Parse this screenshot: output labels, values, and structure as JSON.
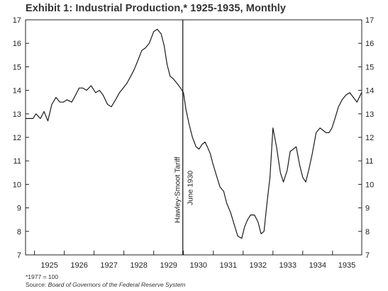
{
  "chart_data": {
    "type": "line",
    "title": "Exhibit 1: Industrial Production,* 1925-1935, Monthly",
    "xlabel": "",
    "ylabel": "",
    "ylim": [
      7,
      17
    ],
    "xlim": [
      1924.7,
      1935.98
    ],
    "yticks": [
      7,
      8,
      9,
      10,
      11,
      12,
      13,
      14,
      15,
      16,
      17
    ],
    "xtick_labels": [
      "1925",
      "1926",
      "1927",
      "1928",
      "1929",
      "1930",
      "1931",
      "1932",
      "1933",
      "1934",
      "1935"
    ],
    "grid": false,
    "annotation": {
      "x": 1930.0,
      "line1": "Hawley-Smoot Tariff",
      "line2": "June 1930"
    },
    "series": [
      {
        "values_x": [
          1924.71,
          1924.95,
          1925.05,
          1925.2,
          1925.32,
          1925.45,
          1925.58,
          1925.72,
          1925.85,
          1925.97,
          1926.09,
          1926.25,
          1926.38,
          1926.5,
          1926.62,
          1926.75,
          1926.9,
          1927.05,
          1927.18,
          1927.3,
          1927.45,
          1927.58,
          1927.72,
          1927.85,
          1927.98,
          1928.1,
          1928.23,
          1928.35,
          1928.48,
          1928.6,
          1928.72,
          1928.85,
          1929.0,
          1929.12,
          1929.25,
          1929.35,
          1929.45,
          1929.55,
          1929.65,
          1929.78,
          1929.9,
          1930.0,
          1930.08,
          1930.18,
          1930.3,
          1930.42,
          1930.52,
          1930.62,
          1930.72,
          1930.8,
          1930.9,
          1930.98,
          1931.1,
          1931.22,
          1931.35,
          1931.45,
          1931.58,
          1931.7,
          1931.82,
          1931.95,
          1932.05,
          1932.15,
          1932.25,
          1932.38,
          1932.5,
          1932.6,
          1932.7,
          1932.8,
          1932.9,
          1933.0,
          1933.12,
          1933.25,
          1933.35,
          1933.48,
          1933.58,
          1933.68,
          1933.78,
          1933.9,
          1934.0,
          1934.1,
          1934.2,
          1934.32,
          1934.45,
          1934.58,
          1934.68,
          1934.78,
          1934.88,
          1934.98,
          1935.08,
          1935.2,
          1935.32,
          1935.45,
          1935.58,
          1935.7,
          1935.82,
          1935.97
        ],
        "values": [
          12.8,
          12.8,
          13.0,
          12.8,
          13.1,
          12.7,
          13.4,
          13.7,
          13.5,
          13.5,
          13.6,
          13.5,
          13.8,
          14.1,
          14.1,
          14.0,
          14.2,
          13.9,
          14.0,
          13.8,
          13.4,
          13.3,
          13.6,
          13.9,
          14.1,
          14.3,
          14.6,
          14.9,
          15.3,
          15.7,
          15.8,
          16.0,
          16.5,
          16.6,
          16.4,
          15.9,
          15.1,
          14.6,
          14.5,
          14.3,
          14.1,
          13.9,
          13.2,
          12.6,
          12.0,
          11.6,
          11.5,
          11.7,
          11.8,
          11.6,
          11.3,
          10.9,
          10.4,
          9.9,
          9.7,
          9.2,
          8.8,
          8.3,
          7.8,
          7.7,
          8.2,
          8.5,
          8.7,
          8.7,
          8.4,
          7.9,
          8.0,
          9.2,
          10.3,
          12.4,
          11.6,
          10.5,
          10.1,
          10.6,
          11.4,
          11.5,
          11.6,
          10.8,
          10.3,
          10.1,
          10.6,
          11.3,
          12.2,
          12.4,
          12.3,
          12.2,
          12.2,
          12.4,
          12.8,
          13.3,
          13.6,
          13.8,
          13.9,
          13.7,
          13.5,
          13.9
        ]
      }
    ]
  },
  "footnote": {
    "base": "*1977 = 100",
    "source_label": "Source:",
    "source_text": "Board of Governors of the Federal Reserve System"
  }
}
